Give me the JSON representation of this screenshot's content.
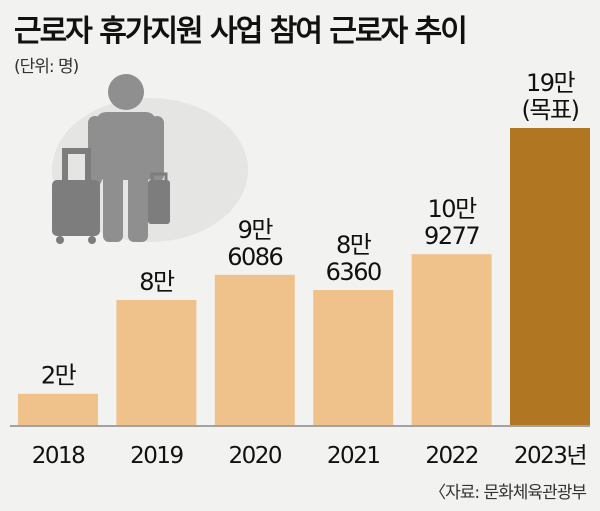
{
  "header": {
    "title": "근로자 휴가지원 사업 참여 근로자 추이",
    "unit": "(단위: 명)"
  },
  "footer": {
    "source": "〈자료: 문화체육관광부"
  },
  "colors": {
    "bar": "#efc28c",
    "bar_highlight": "#b07622",
    "axis": "#888888",
    "silhouette": "#8f8f8f",
    "shadow": "#e2e2e0"
  },
  "illustration": {
    "icon": "traveler-with-luggage-icon"
  },
  "chart_data": {
    "type": "bar",
    "categories": [
      "2018",
      "2019",
      "2020",
      "2021",
      "2022",
      "2023년"
    ],
    "values": [
      20000,
      80000,
      96086,
      86360,
      109277,
      190000
    ],
    "data_labels": [
      [
        "2만"
      ],
      [
        "8만"
      ],
      [
        "9만",
        "6086"
      ],
      [
        "8만",
        "6360"
      ],
      [
        "10만",
        "9277"
      ],
      [
        "19만",
        "(목표)"
      ]
    ],
    "highlight_index": 5,
    "ylim": [
      0,
      190000
    ],
    "grid": false,
    "legend": "none"
  }
}
